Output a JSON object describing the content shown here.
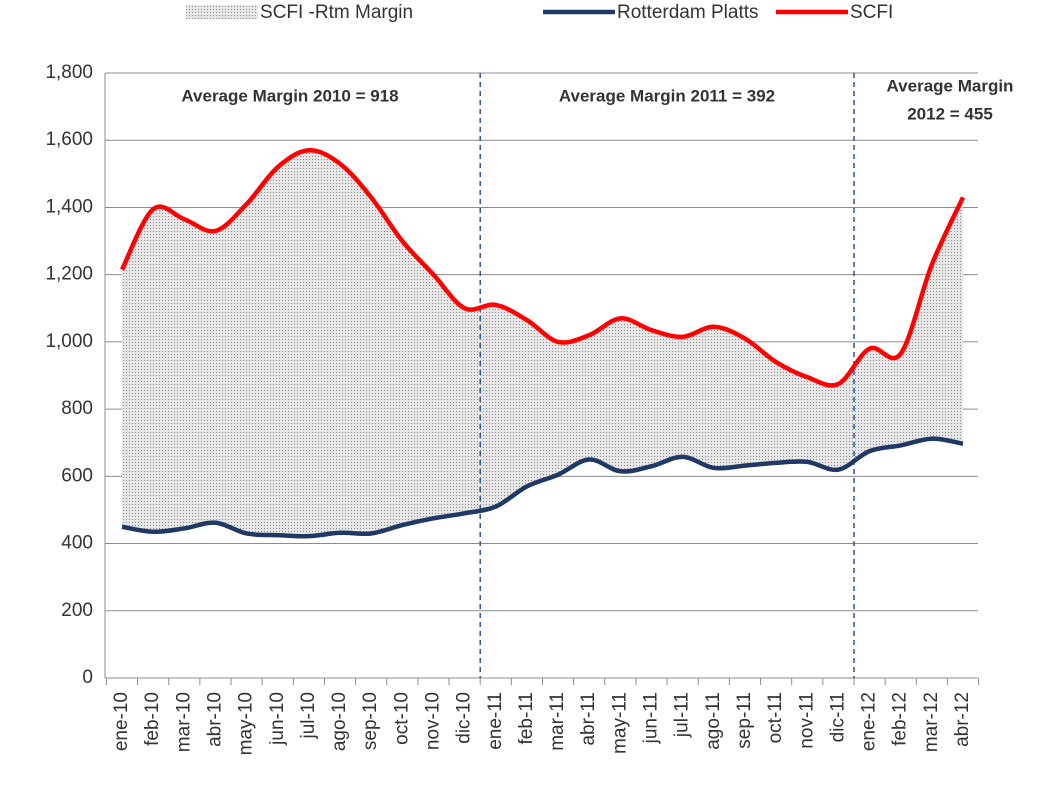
{
  "chart_data": {
    "type": "line",
    "categories": [
      "ene-10",
      "feb-10",
      "mar-10",
      "abr-10",
      "may-10",
      "jun-10",
      "jul-10",
      "ago-10",
      "sep-10",
      "oct-10",
      "nov-10",
      "dic-10",
      "ene-11",
      "feb-11",
      "mar-11",
      "abr-11",
      "may-11",
      "jun-11",
      "jul-11",
      "ago-11",
      "sep-11",
      "oct-11",
      "nov-11",
      "dic-11",
      "ene-12",
      "feb-12",
      "mar-12",
      "abr-12"
    ],
    "series": [
      {
        "name": "SCFI -Rtm Margin",
        "color": "#bfbfbf"
      },
      {
        "name": "Rotterdam Platts",
        "color": "#1f3864",
        "values": [
          450,
          435,
          445,
          462,
          430,
          425,
          422,
          432,
          430,
          455,
          475,
          490,
          510,
          570,
          605,
          650,
          615,
          630,
          658,
          625,
          632,
          640,
          643,
          620,
          675,
          692,
          712,
          697
        ]
      },
      {
        "name": "SCFI",
        "color": "#ff0000",
        "values": [
          1215,
          1395,
          1365,
          1330,
          1410,
          1520,
          1570,
          1530,
          1430,
          1300,
          1200,
          1100,
          1110,
          1065,
          1000,
          1020,
          1070,
          1035,
          1015,
          1045,
          1010,
          940,
          895,
          875,
          980,
          965,
          1230,
          1430
        ]
      }
    ],
    "annotations": [
      [
        "Average Margin 2010 = 918"
      ],
      [
        "Average Margin 2011 = 392"
      ],
      [
        "Average Margin",
        "2012 = 455"
      ]
    ],
    "ylim": [
      0,
      1800
    ],
    "yticks": [
      0,
      200,
      400,
      600,
      800,
      {
        "value": 1000,
        "label": "1,000"
      },
      {
        "value": 1200,
        "label": "1,200"
      },
      {
        "value": 1400,
        "label": "1,400"
      },
      {
        "value": 1600,
        "label": "1,600"
      },
      {
        "value": 1800,
        "label": "1,800"
      }
    ],
    "grid": true,
    "legend": "top"
  }
}
